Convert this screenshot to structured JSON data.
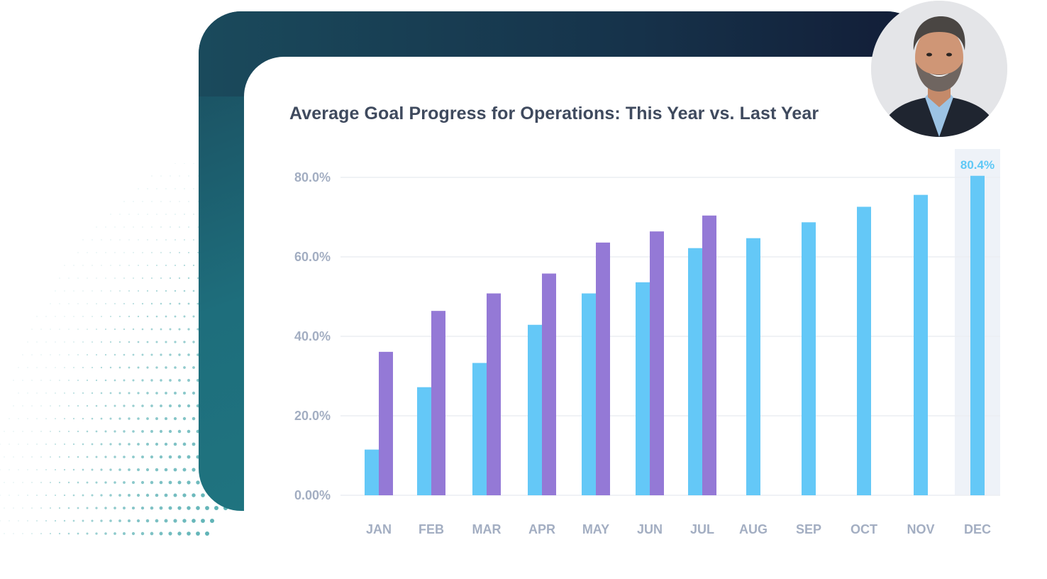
{
  "chart_data": {
    "type": "bar",
    "title": "Average Goal Progress for Operations: This Year vs. Last Year",
    "categories": [
      "JAN",
      "FEB",
      "MAR",
      "APR",
      "MAY",
      "JUN",
      "JUL",
      "AUG",
      "SEP",
      "OCT",
      "NOV",
      "DEC"
    ],
    "series": [
      {
        "values": [
          11.5,
          27.2,
          33.3,
          42.9,
          50.8,
          53.6,
          62.2,
          64.7,
          68.7,
          72.6,
          75.6,
          80.4
        ]
      },
      {
        "values": [
          36.1,
          46.4,
          50.8,
          55.8,
          63.6,
          66.4,
          70.4,
          null,
          null,
          null,
          null,
          null
        ]
      }
    ],
    "yticks": [
      {
        "value": 0,
        "label": "0.00%"
      },
      {
        "value": 20,
        "label": "20.0%"
      },
      {
        "value": 40,
        "label": "40.0%"
      },
      {
        "value": 60,
        "label": "60.0%"
      },
      {
        "value": 80,
        "label": "80.0%"
      }
    ],
    "ylim": [
      0,
      80
    ],
    "grid": true,
    "highlight": {
      "category": "DEC",
      "label": "80.4%"
    },
    "colors": {
      "this_year": "#64c8f7",
      "last_year": "#9479d6",
      "highlight_bg": "#eef2f8",
      "grid": "#eceef2"
    }
  }
}
